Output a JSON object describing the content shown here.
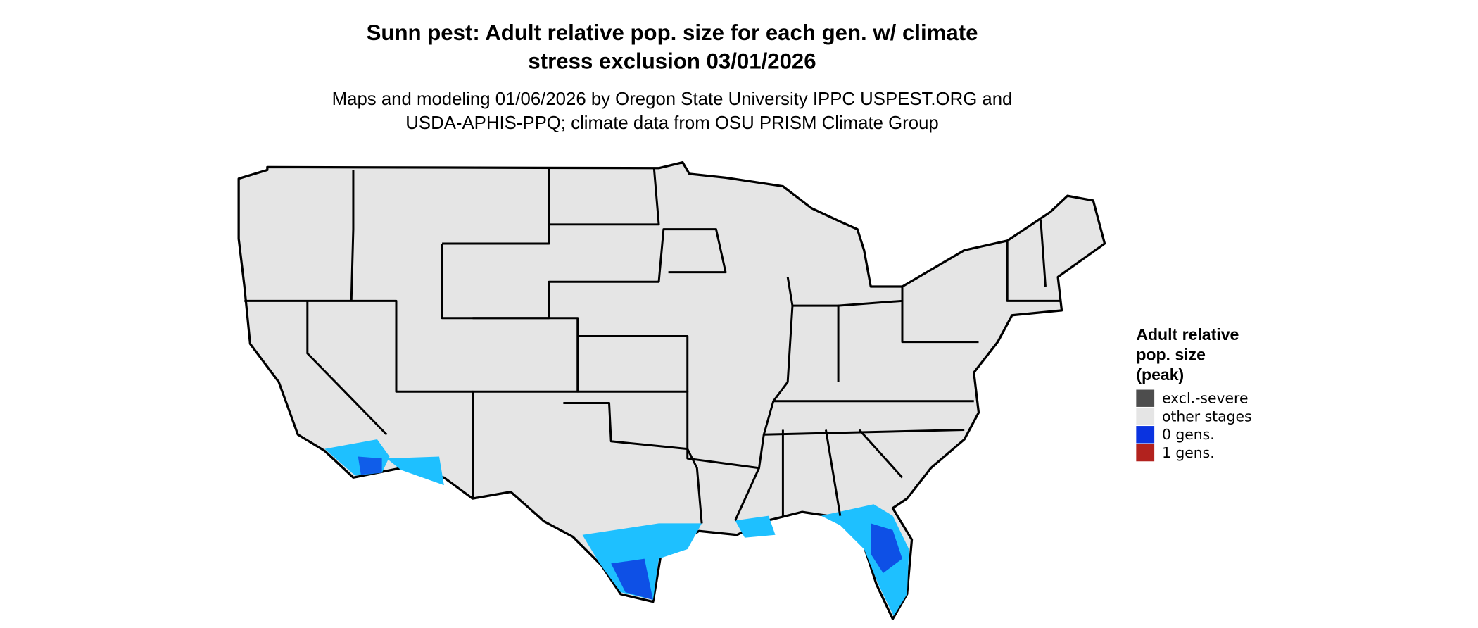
{
  "title": [
    "Sunn pest: Adult relative pop. size for each gen. w/ climate",
    "stress exclusion 03/01/2026"
  ],
  "subtitle": [
    "Maps and modeling 01/06/2026 by Oregon State University IPPC USPEST.ORG and",
    "USDA-APHIS-PPQ; climate data from OSU PRISM Climate Group"
  ],
  "legend": {
    "title": [
      "Adult relative",
      "pop. size",
      "(peak)"
    ],
    "items": [
      {
        "label": "excl.-severe",
        "color": "#4d4d4d"
      },
      {
        "label": "other stages",
        "color": "#e5e5e5"
      },
      {
        "label": "0 gens.",
        "color": "#0a33e0"
      },
      {
        "label": "1 gens.",
        "color": "#b2221e"
      }
    ]
  }
}
